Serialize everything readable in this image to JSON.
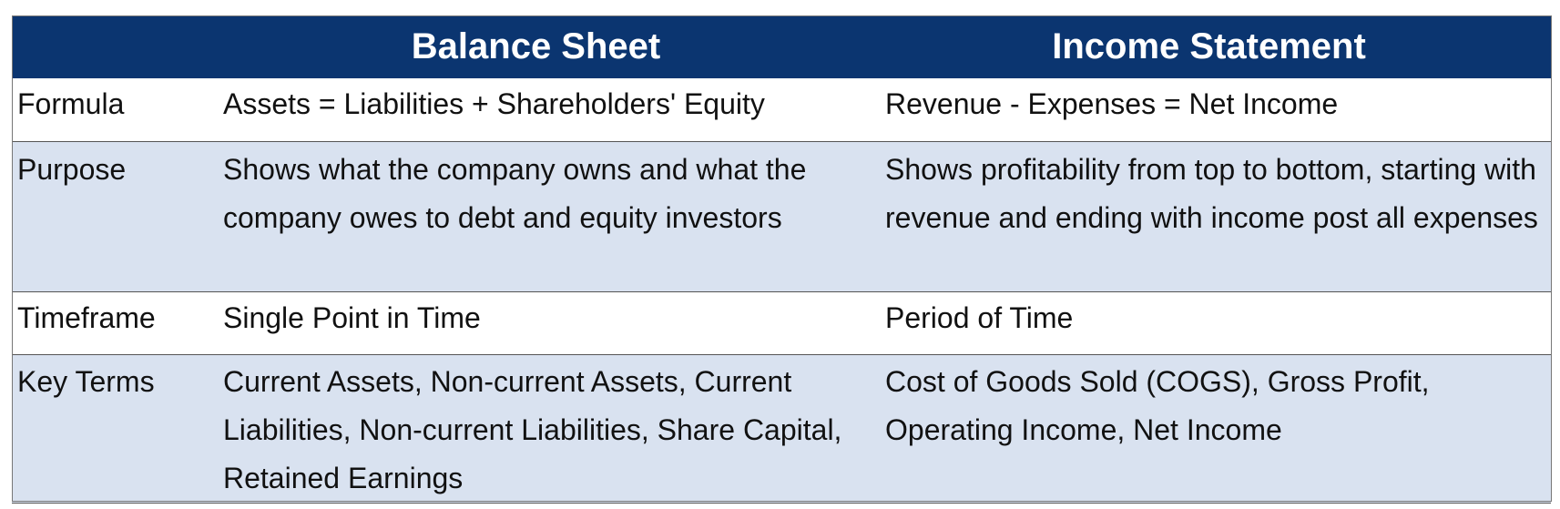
{
  "header": {
    "label_column": "",
    "balance_sheet": "Balance Sheet",
    "income_statement": "Income Statement"
  },
  "rows": [
    {
      "label": "Formula",
      "balance_sheet": "Assets = Liabilities + Shareholders' Equity",
      "income_statement": "Revenue - Expenses = Net Income"
    },
    {
      "label": "Purpose",
      "balance_sheet": "Shows what the company owns and what the company owes to debt and equity investors",
      "income_statement": "Shows profitability from top to bottom, starting with revenue and ending with income post all expenses"
    },
    {
      "label": "Timeframe",
      "balance_sheet": "Single Point in Time",
      "income_statement": "Period of Time"
    },
    {
      "label": "Key Terms",
      "balance_sheet": "Current Assets, Non-current Assets, Current Liabilities, Non-current Liabilities, Share Capital, Retained Earnings",
      "income_statement": "Cost of Goods Sold (COGS), Gross Profit, Operating Income, Net Income"
    }
  ],
  "colors": {
    "header_bg": "#0b3570",
    "header_text": "#ffffff",
    "band_blue": "#d9e2f0",
    "band_white": "#ffffff"
  }
}
